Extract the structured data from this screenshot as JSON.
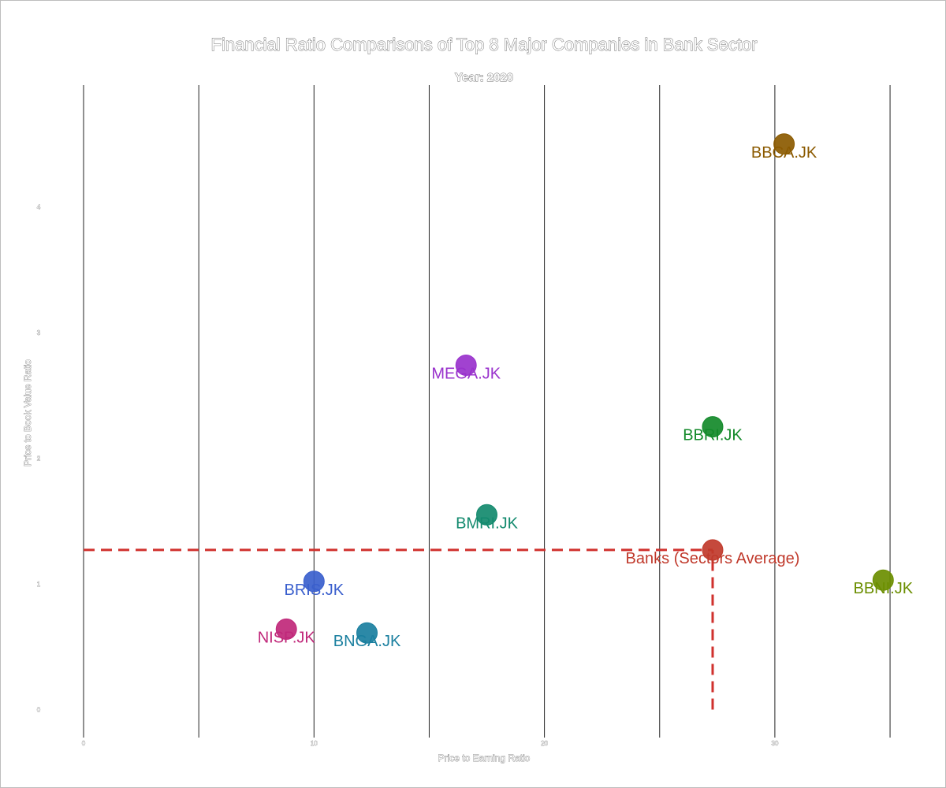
{
  "chart_data": {
    "type": "scatter",
    "title": "Financial Ratio Comparisons of Top 8 Major Companies in Bank Sector",
    "subtitle": "Year: 2020",
    "xlabel": "Price to Earning Ratio",
    "ylabel": "Price to Book Value Ratio",
    "xlim": [
      0,
      35
    ],
    "ylim": [
      -0.2,
      4.9
    ],
    "x_ticks": [
      {
        "value": 0,
        "label": "0"
      },
      {
        "value": 10,
        "label": "10"
      },
      {
        "value": 20,
        "label": "20"
      },
      {
        "value": 30,
        "label": "30"
      }
    ],
    "y_ticks": [
      {
        "value": 0,
        "label": "0"
      },
      {
        "value": 1,
        "label": "1"
      },
      {
        "value": 2,
        "label": "2"
      },
      {
        "value": 3,
        "label": "3"
      },
      {
        "value": 4,
        "label": "4"
      }
    ],
    "vertical_gridlines": [
      0,
      5,
      10,
      15,
      20,
      25,
      30,
      35
    ],
    "grid": "vertical-only",
    "legend": "none",
    "points": [
      {
        "label": "BBCA.JK",
        "x": 30.4,
        "y": 4.5,
        "color": "#8B5A00"
      },
      {
        "label": "MEGA.JK",
        "x": 16.6,
        "y": 2.74,
        "color": "#9932CC"
      },
      {
        "label": "BBRI.JK",
        "x": 27.3,
        "y": 2.25,
        "color": "#138A2A"
      },
      {
        "label": "BMRI.JK",
        "x": 17.5,
        "y": 1.55,
        "color": "#138A6E"
      },
      {
        "label": "Banks (Sectors Average)",
        "x": 27.3,
        "y": 1.27,
        "color": "#C0392B"
      },
      {
        "label": "BBNI.JK",
        "x": 34.7,
        "y": 1.03,
        "color": "#6B8E00"
      },
      {
        "label": "BRIS.JK",
        "x": 10.0,
        "y": 1.02,
        "color": "#3A5FCD"
      },
      {
        "label": "NISP.JK",
        "x": 8.8,
        "y": 0.64,
        "color": "#C0287A"
      },
      {
        "label": "BNGA.JK",
        "x": 12.3,
        "y": 0.61,
        "color": "#1A7F9F"
      }
    ],
    "reference_lines": [
      {
        "orientation": "horizontal",
        "y": 1.27,
        "x_from": 0,
        "x_to": 27.3,
        "style": "dashed",
        "color": "#D0312D"
      },
      {
        "orientation": "vertical",
        "x": 27.3,
        "y_from": 0,
        "y_to": 1.27,
        "style": "dashed",
        "color": "#D0312D"
      }
    ]
  }
}
